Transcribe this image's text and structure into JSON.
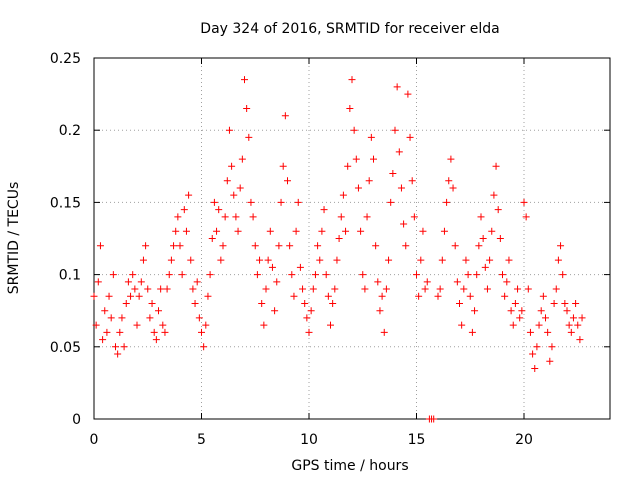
{
  "chart_data": {
    "type": "scatter",
    "title": "Day 324 of 2016, SRMTID for receiver elda",
    "xlabel": "GPS time / hours",
    "ylabel": "SRMTID / TECUs",
    "xlim": [
      0,
      24
    ],
    "ylim": [
      0,
      0.25
    ],
    "grid": true,
    "legend": "none",
    "marker": "plus",
    "colors": {
      "series": "#ff0000",
      "axis": "#000000",
      "grid": "#a0a0a0"
    },
    "x_ticks": [
      {
        "value": 0,
        "label": "0"
      },
      {
        "value": 5,
        "label": "5"
      },
      {
        "value": 10,
        "label": "10"
      },
      {
        "value": 15,
        "label": "15"
      },
      {
        "value": 20,
        "label": "20"
      }
    ],
    "y_ticks": [
      {
        "value": 0,
        "label": "0"
      },
      {
        "value": 0.05,
        "label": "0.05"
      },
      {
        "value": 0.1,
        "label": "0.1"
      },
      {
        "value": 0.15,
        "label": "0.15"
      },
      {
        "value": 0.2,
        "label": "0.2"
      },
      {
        "value": 0.25,
        "label": "0.25"
      }
    ],
    "series": [
      {
        "name": "SRMTID",
        "x_step": 0.1,
        "points": [
          [
            0.0,
            0.085
          ],
          [
            0.1,
            0.065
          ],
          [
            0.2,
            0.095
          ],
          [
            0.3,
            0.12
          ],
          [
            0.4,
            0.055
          ],
          [
            0.5,
            0.075
          ],
          [
            0.6,
            0.06
          ],
          [
            0.7,
            0.085
          ],
          [
            0.8,
            0.07
          ],
          [
            0.9,
            0.1
          ],
          [
            1.0,
            0.05
          ],
          [
            1.1,
            0.045
          ],
          [
            1.2,
            0.06
          ],
          [
            1.3,
            0.07
          ],
          [
            1.4,
            0.05
          ],
          [
            1.5,
            0.08
          ],
          [
            1.6,
            0.095
          ],
          [
            1.7,
            0.085
          ],
          [
            1.8,
            0.1
          ],
          [
            1.9,
            0.09
          ],
          [
            2.0,
            0.065
          ],
          [
            2.1,
            0.085
          ],
          [
            2.2,
            0.095
          ],
          [
            2.3,
            0.11
          ],
          [
            2.4,
            0.12
          ],
          [
            2.5,
            0.09
          ],
          [
            2.6,
            0.07
          ],
          [
            2.7,
            0.08
          ],
          [
            2.8,
            0.06
          ],
          [
            2.9,
            0.055
          ],
          [
            3.0,
            0.075
          ],
          [
            3.1,
            0.09
          ],
          [
            3.2,
            0.065
          ],
          [
            3.3,
            0.06
          ],
          [
            3.4,
            0.09
          ],
          [
            3.5,
            0.1
          ],
          [
            3.6,
            0.11
          ],
          [
            3.7,
            0.12
          ],
          [
            3.8,
            0.13
          ],
          [
            3.9,
            0.14
          ],
          [
            4.0,
            0.12
          ],
          [
            4.1,
            0.1
          ],
          [
            4.2,
            0.145
          ],
          [
            4.3,
            0.13
          ],
          [
            4.4,
            0.155
          ],
          [
            4.5,
            0.11
          ],
          [
            4.6,
            0.09
          ],
          [
            4.7,
            0.08
          ],
          [
            4.8,
            0.095
          ],
          [
            4.9,
            0.07
          ],
          [
            5.0,
            0.06
          ],
          [
            5.1,
            0.05
          ],
          [
            5.2,
            0.065
          ],
          [
            5.3,
            0.085
          ],
          [
            5.4,
            0.1
          ],
          [
            5.5,
            0.125
          ],
          [
            5.6,
            0.15
          ],
          [
            5.7,
            0.13
          ],
          [
            5.8,
            0.145
          ],
          [
            5.9,
            0.11
          ],
          [
            6.0,
            0.12
          ],
          [
            6.1,
            0.14
          ],
          [
            6.2,
            0.165
          ],
          [
            6.3,
            0.2
          ],
          [
            6.4,
            0.175
          ],
          [
            6.5,
            0.155
          ],
          [
            6.6,
            0.14
          ],
          [
            6.7,
            0.13
          ],
          [
            6.8,
            0.16
          ],
          [
            6.9,
            0.18
          ],
          [
            7.0,
            0.235
          ],
          [
            7.1,
            0.215
          ],
          [
            7.2,
            0.195
          ],
          [
            7.3,
            0.15
          ],
          [
            7.4,
            0.14
          ],
          [
            7.5,
            0.12
          ],
          [
            7.6,
            0.1
          ],
          [
            7.7,
            0.11
          ],
          [
            7.8,
            0.08
          ],
          [
            7.9,
            0.065
          ],
          [
            8.0,
            0.09
          ],
          [
            8.1,
            0.11
          ],
          [
            8.2,
            0.13
          ],
          [
            8.3,
            0.105
          ],
          [
            8.4,
            0.075
          ],
          [
            8.5,
            0.095
          ],
          [
            8.6,
            0.12
          ],
          [
            8.7,
            0.15
          ],
          [
            8.8,
            0.175
          ],
          [
            8.9,
            0.21
          ],
          [
            9.0,
            0.165
          ],
          [
            9.1,
            0.12
          ],
          [
            9.2,
            0.1
          ],
          [
            9.3,
            0.085
          ],
          [
            9.4,
            0.13
          ],
          [
            9.5,
            0.15
          ],
          [
            9.6,
            0.105
          ],
          [
            9.7,
            0.09
          ],
          [
            9.8,
            0.08
          ],
          [
            9.9,
            0.07
          ],
          [
            10.0,
            0.06
          ],
          [
            10.1,
            0.075
          ],
          [
            10.2,
            0.09
          ],
          [
            10.3,
            0.1
          ],
          [
            10.4,
            0.12
          ],
          [
            10.5,
            0.11
          ],
          [
            10.6,
            0.13
          ],
          [
            10.7,
            0.145
          ],
          [
            10.8,
            0.1
          ],
          [
            10.9,
            0.085
          ],
          [
            11.0,
            0.065
          ],
          [
            11.1,
            0.08
          ],
          [
            11.2,
            0.09
          ],
          [
            11.3,
            0.11
          ],
          [
            11.4,
            0.125
          ],
          [
            11.5,
            0.14
          ],
          [
            11.6,
            0.155
          ],
          [
            11.7,
            0.13
          ],
          [
            11.8,
            0.175
          ],
          [
            11.9,
            0.215
          ],
          [
            12.0,
            0.235
          ],
          [
            12.1,
            0.2
          ],
          [
            12.2,
            0.18
          ],
          [
            12.3,
            0.16
          ],
          [
            12.4,
            0.13
          ],
          [
            12.5,
            0.1
          ],
          [
            12.6,
            0.09
          ],
          [
            12.7,
            0.14
          ],
          [
            12.8,
            0.165
          ],
          [
            12.9,
            0.195
          ],
          [
            13.0,
            0.18
          ],
          [
            13.1,
            0.12
          ],
          [
            13.2,
            0.095
          ],
          [
            13.3,
            0.075
          ],
          [
            13.4,
            0.085
          ],
          [
            13.5,
            0.06
          ],
          [
            13.6,
            0.09
          ],
          [
            13.7,
            0.11
          ],
          [
            13.8,
            0.15
          ],
          [
            13.9,
            0.17
          ],
          [
            14.0,
            0.2
          ],
          [
            14.1,
            0.23
          ],
          [
            14.2,
            0.185
          ],
          [
            14.3,
            0.16
          ],
          [
            14.4,
            0.135
          ],
          [
            14.5,
            0.12
          ],
          [
            14.6,
            0.225
          ],
          [
            14.7,
            0.195
          ],
          [
            14.8,
            0.165
          ],
          [
            14.9,
            0.14
          ],
          [
            15.0,
            0.1
          ],
          [
            15.1,
            0.085
          ],
          [
            15.2,
            0.11
          ],
          [
            15.3,
            0.13
          ],
          [
            15.4,
            0.09
          ],
          [
            15.5,
            0.095
          ],
          [
            15.6,
            0.0
          ],
          [
            15.7,
            0.0
          ],
          [
            15.8,
            0.0
          ],
          [
            16.0,
            0.085
          ],
          [
            16.1,
            0.09
          ],
          [
            16.2,
            0.11
          ],
          [
            16.3,
            0.13
          ],
          [
            16.4,
            0.15
          ],
          [
            16.5,
            0.165
          ],
          [
            16.6,
            0.18
          ],
          [
            16.7,
            0.16
          ],
          [
            16.8,
            0.12
          ],
          [
            16.9,
            0.095
          ],
          [
            17.0,
            0.08
          ],
          [
            17.1,
            0.065
          ],
          [
            17.2,
            0.09
          ],
          [
            17.3,
            0.11
          ],
          [
            17.4,
            0.1
          ],
          [
            17.5,
            0.085
          ],
          [
            17.6,
            0.06
          ],
          [
            17.7,
            0.075
          ],
          [
            17.8,
            0.1
          ],
          [
            17.9,
            0.12
          ],
          [
            18.0,
            0.14
          ],
          [
            18.1,
            0.125
          ],
          [
            18.2,
            0.105
          ],
          [
            18.3,
            0.09
          ],
          [
            18.4,
            0.11
          ],
          [
            18.5,
            0.13
          ],
          [
            18.6,
            0.155
          ],
          [
            18.7,
            0.175
          ],
          [
            18.8,
            0.145
          ],
          [
            18.9,
            0.125
          ],
          [
            19.0,
            0.1
          ],
          [
            19.1,
            0.085
          ],
          [
            19.2,
            0.095
          ],
          [
            19.3,
            0.11
          ],
          [
            19.4,
            0.075
          ],
          [
            19.5,
            0.065
          ],
          [
            19.6,
            0.08
          ],
          [
            19.7,
            0.09
          ],
          [
            19.8,
            0.07
          ],
          [
            19.9,
            0.075
          ],
          [
            20.0,
            0.15
          ],
          [
            20.1,
            0.14
          ],
          [
            20.2,
            0.09
          ],
          [
            20.3,
            0.06
          ],
          [
            20.4,
            0.045
          ],
          [
            20.5,
            0.035
          ],
          [
            20.6,
            0.05
          ],
          [
            20.7,
            0.065
          ],
          [
            20.8,
            0.075
          ],
          [
            20.9,
            0.085
          ],
          [
            21.0,
            0.07
          ],
          [
            21.1,
            0.06
          ],
          [
            21.2,
            0.04
          ],
          [
            21.3,
            0.05
          ],
          [
            21.4,
            0.08
          ],
          [
            21.5,
            0.09
          ],
          [
            21.6,
            0.11
          ],
          [
            21.7,
            0.12
          ],
          [
            21.8,
            0.1
          ],
          [
            21.9,
            0.08
          ],
          [
            22.0,
            0.075
          ],
          [
            22.1,
            0.065
          ],
          [
            22.2,
            0.06
          ],
          [
            22.3,
            0.07
          ],
          [
            22.4,
            0.08
          ],
          [
            22.5,
            0.065
          ],
          [
            22.6,
            0.055
          ],
          [
            22.7,
            0.07
          ]
        ]
      }
    ]
  }
}
